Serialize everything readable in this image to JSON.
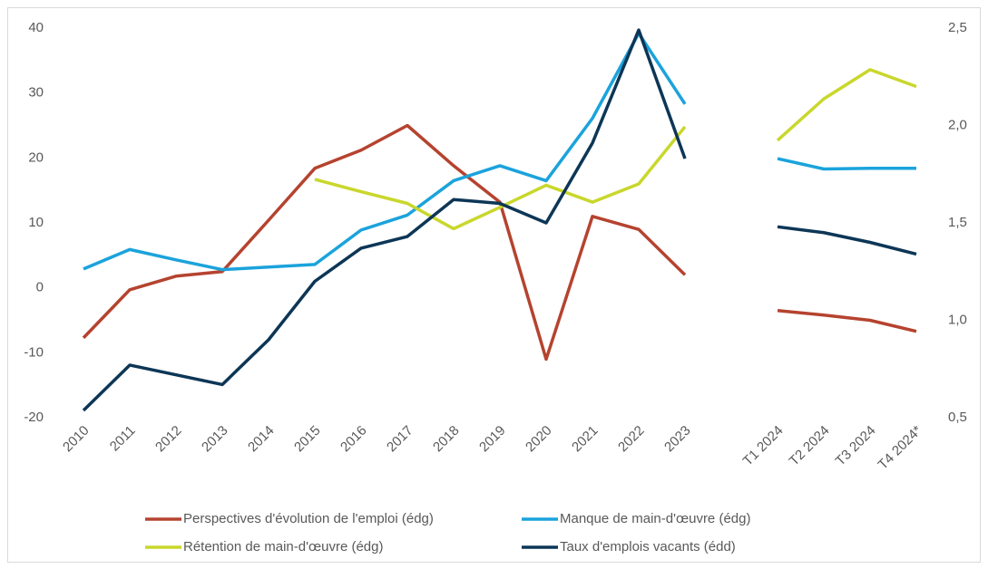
{
  "chart_data": {
    "type": "line",
    "categories": [
      "2010",
      "2011",
      "2012",
      "2013",
      "2014",
      "2015",
      "2016",
      "2017",
      "2018",
      "2019",
      "2020",
      "2021",
      "2022",
      "2023",
      null,
      "T1 2024",
      "T2 2024",
      "T3 2024",
      "T4 2024*"
    ],
    "series": [
      {
        "name": "Perspectives d'évolution de l'emploi (édg)",
        "color": "#b5432f",
        "values": [
          -7.7,
          -0.3,
          1.8,
          2.5,
          10.4,
          18.4,
          21.2,
          25,
          18.8,
          13.2,
          -11,
          11,
          9,
          2,
          null,
          -3.5,
          -4.2,
          -5,
          -6.7
        ]
      },
      {
        "name": "Manque de main-d'œuvre (édg)",
        "color": "#1ba3dc",
        "values": [
          2.9,
          5.9,
          4.3,
          2.8,
          3.2,
          3.6,
          8.9,
          11.2,
          16.5,
          18.8,
          16.5,
          26.1,
          39.2,
          28.3,
          null,
          19.9,
          18.3,
          18.4,
          18.4
        ]
      },
      {
        "name": "Rétention de main-d'œuvre (édg)",
        "color": "#c9d72c",
        "values": [
          null,
          null,
          null,
          null,
          null,
          16.7,
          14.8,
          13,
          9.1,
          12.4,
          15.8,
          13.2,
          16,
          24.8,
          null,
          22.7,
          29.1,
          33.6,
          31
        ]
      },
      {
        "name": "Taux d'emplois vacants (édd)",
        "color": "#0d3656",
        "axis": "y2",
        "values": [
          0.537,
          0.77,
          0.72,
          0.67,
          0.9,
          1.2,
          1.37,
          1.43,
          1.62,
          1.6,
          1.5,
          1.91,
          2.49,
          1.83,
          null,
          1.48,
          1.45,
          1.4,
          1.34
        ]
      }
    ],
    "ylim": [
      -20,
      40
    ],
    "yticks": [
      -20,
      -10,
      0,
      10,
      20,
      30,
      40
    ],
    "y2lim": [
      0.5,
      2.5
    ],
    "y2ticks": [
      {
        "value": 0.5,
        "label": "0,5"
      },
      {
        "value": 1,
        "label": "1,0"
      },
      {
        "value": 1.5,
        "label": "1,5"
      },
      {
        "value": 2,
        "label": "2,0"
      },
      {
        "value": 2.5,
        "label": "2,5"
      }
    ],
    "grid": false,
    "legend": "bottom"
  }
}
